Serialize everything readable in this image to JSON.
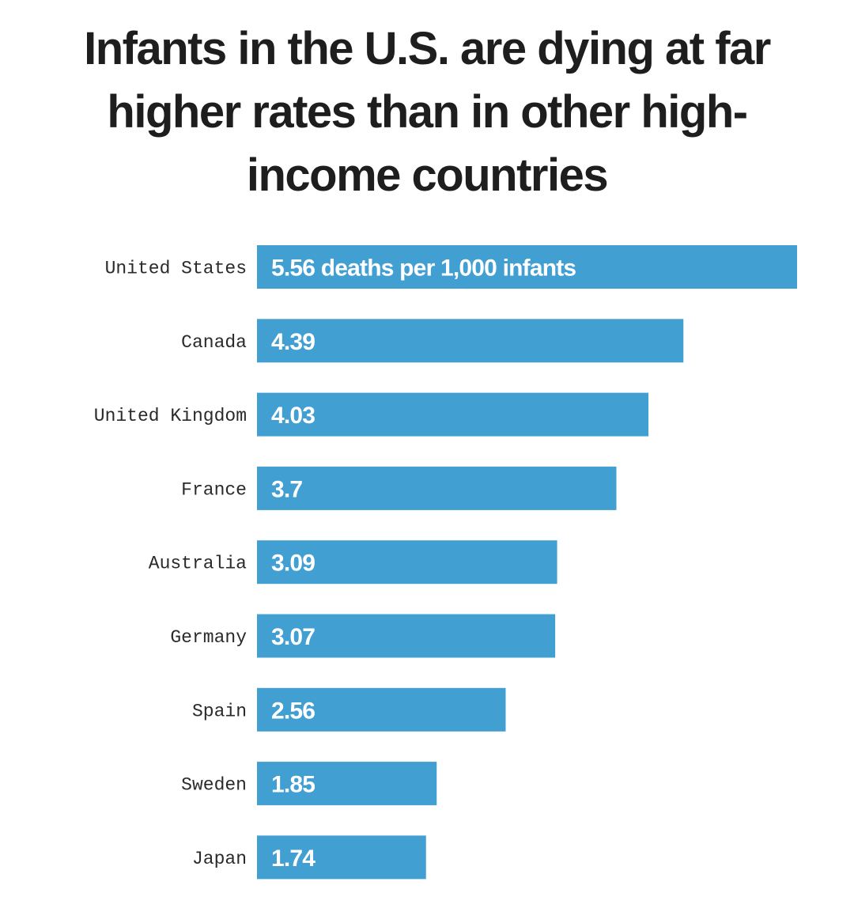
{
  "chart_data": {
    "type": "bar",
    "orientation": "horizontal",
    "title": "Infants in the U.S. are dying at far higher rates than in other high-income countries",
    "categories": [
      "United States",
      "Canada",
      "United Kingdom",
      "France",
      "Australia",
      "Germany",
      "Spain",
      "Sweden",
      "Japan"
    ],
    "values": [
      5.56,
      4.39,
      4.03,
      3.7,
      3.09,
      3.07,
      2.56,
      1.85,
      1.74
    ],
    "value_labels": [
      "5.56 deaths per 1,000 infants",
      "4.39",
      "4.03",
      "3.7",
      "3.09",
      "3.07",
      "2.56",
      "1.85",
      "1.74"
    ],
    "xlim": [
      0,
      5.56
    ],
    "grid": false,
    "bar_color": "#419fd2"
  }
}
